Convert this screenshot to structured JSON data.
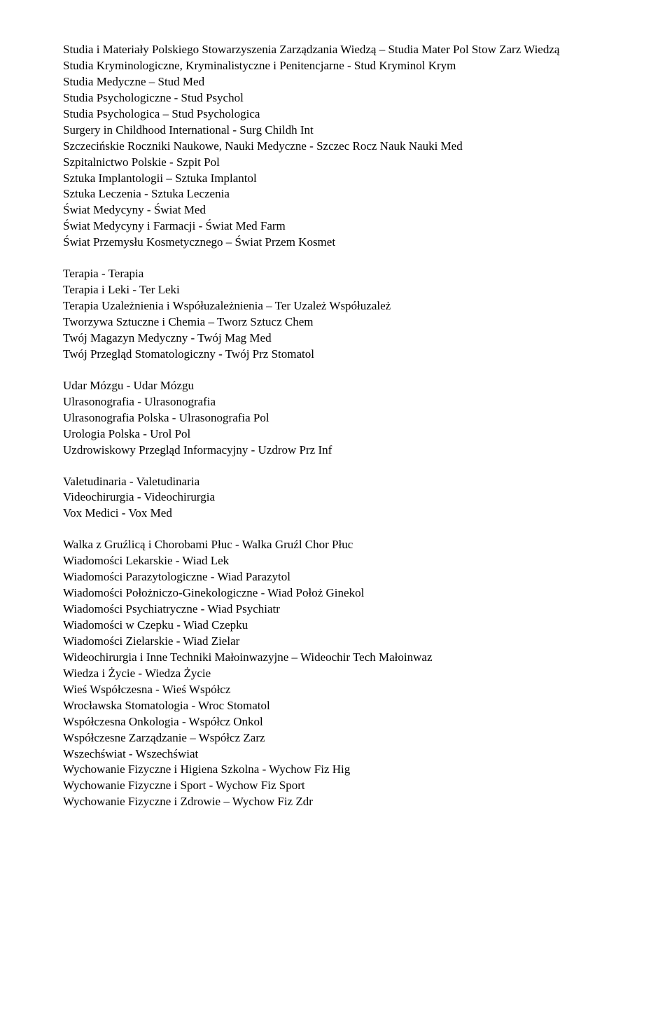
{
  "blocks": [
    [
      "Studia i Materiały Polskiego Stowarzyszenia Zarządzania Wiedzą – Studia Mater Pol Stow Zarz Wiedzą",
      "Studia Kryminologiczne, Kryminalistyczne i Penitencjarne  -  Stud Kryminol Krym",
      "Studia Medyczne – Stud Med",
      "Studia Psychologiczne  -  Stud Psychol",
      "Studia Psychologica – Stud Psychologica",
      "Surgery in Childhood International  -  Surg Childh Int",
      "Szczecińskie Roczniki Naukowe, Nauki Medyczne  -  Szczec Rocz Nauk Nauki Med",
      "Szpitalnictwo Polskie  -  Szpit Pol",
      "Sztuka Implantologii – Sztuka Implantol",
      "Sztuka Leczenia  -  Sztuka Leczenia",
      "Świat Medycyny  -  Świat Med",
      "Świat Medycyny i Farmacji  -  Świat Med Farm",
      "Świat Przemysłu Kosmetycznego – Świat Przem Kosmet"
    ],
    [
      "Terapia  -  Terapia",
      "Terapia i Leki  -  Ter Leki",
      "Terapia Uzależnienia i Współuzależnienia – Ter Uzależ Współuzależ",
      "Tworzywa Sztuczne i Chemia – Tworz Sztucz Chem",
      "Twój Magazyn Medyczny  -  Twój Mag Med",
      "Twój Przegląd Stomatologiczny  -  Twój Prz Stomatol"
    ],
    [
      "Udar Mózgu  -  Udar Mózgu",
      "Ulrasonografia  -  Ulrasonografia",
      "Ulrasonografia Polska  -  Ulrasonografia Pol",
      "Urologia Polska  -  Urol Pol",
      "Uzdrowiskowy Przegląd Informacyjny  -  Uzdrow Prz Inf"
    ],
    [
      "Valetudinaria  -  Valetudinaria",
      "Videochirurgia  -  Videochirurgia",
      "Vox Medici  - Vox Med"
    ],
    [
      "Walka z Gruźlicą i Chorobami Płuc  -  Walka Gruźl Chor Płuc",
      "Wiadomości Lekarskie  -  Wiad Lek",
      "Wiadomości Parazytologiczne  -  Wiad Parazytol",
      "Wiadomości Położniczo-Ginekologiczne  -  Wiad Położ Ginekol",
      "Wiadomości Psychiatryczne  -  Wiad Psychiatr",
      "Wiadomości w Czepku  -  Wiad Czepku",
      "Wiadomości Zielarskie  -  Wiad Zielar",
      "Wideochirurgia i Inne Techniki Małoinwazyjne – Wideochir Tech Małoinwaz",
      "Wiedza i Życie  -  Wiedza Życie",
      "Wieś Współczesna  -  Wieś Współcz",
      "Wrocławska Stomatologia  -  Wroc Stomatol",
      "Współczesna Onkologia  -  Współcz Onkol",
      "Współczesne Zarządzanie – Współcz Zarz",
      "Wszechświat  -  Wszechświat",
      "Wychowanie Fizyczne i Higiena Szkolna  -  Wychow Fiz Hig",
      "Wychowanie Fizyczne i Sport  -  Wychow Fiz Sport",
      "Wychowanie Fizyczne i Zdrowie – Wychow Fiz Zdr"
    ]
  ]
}
